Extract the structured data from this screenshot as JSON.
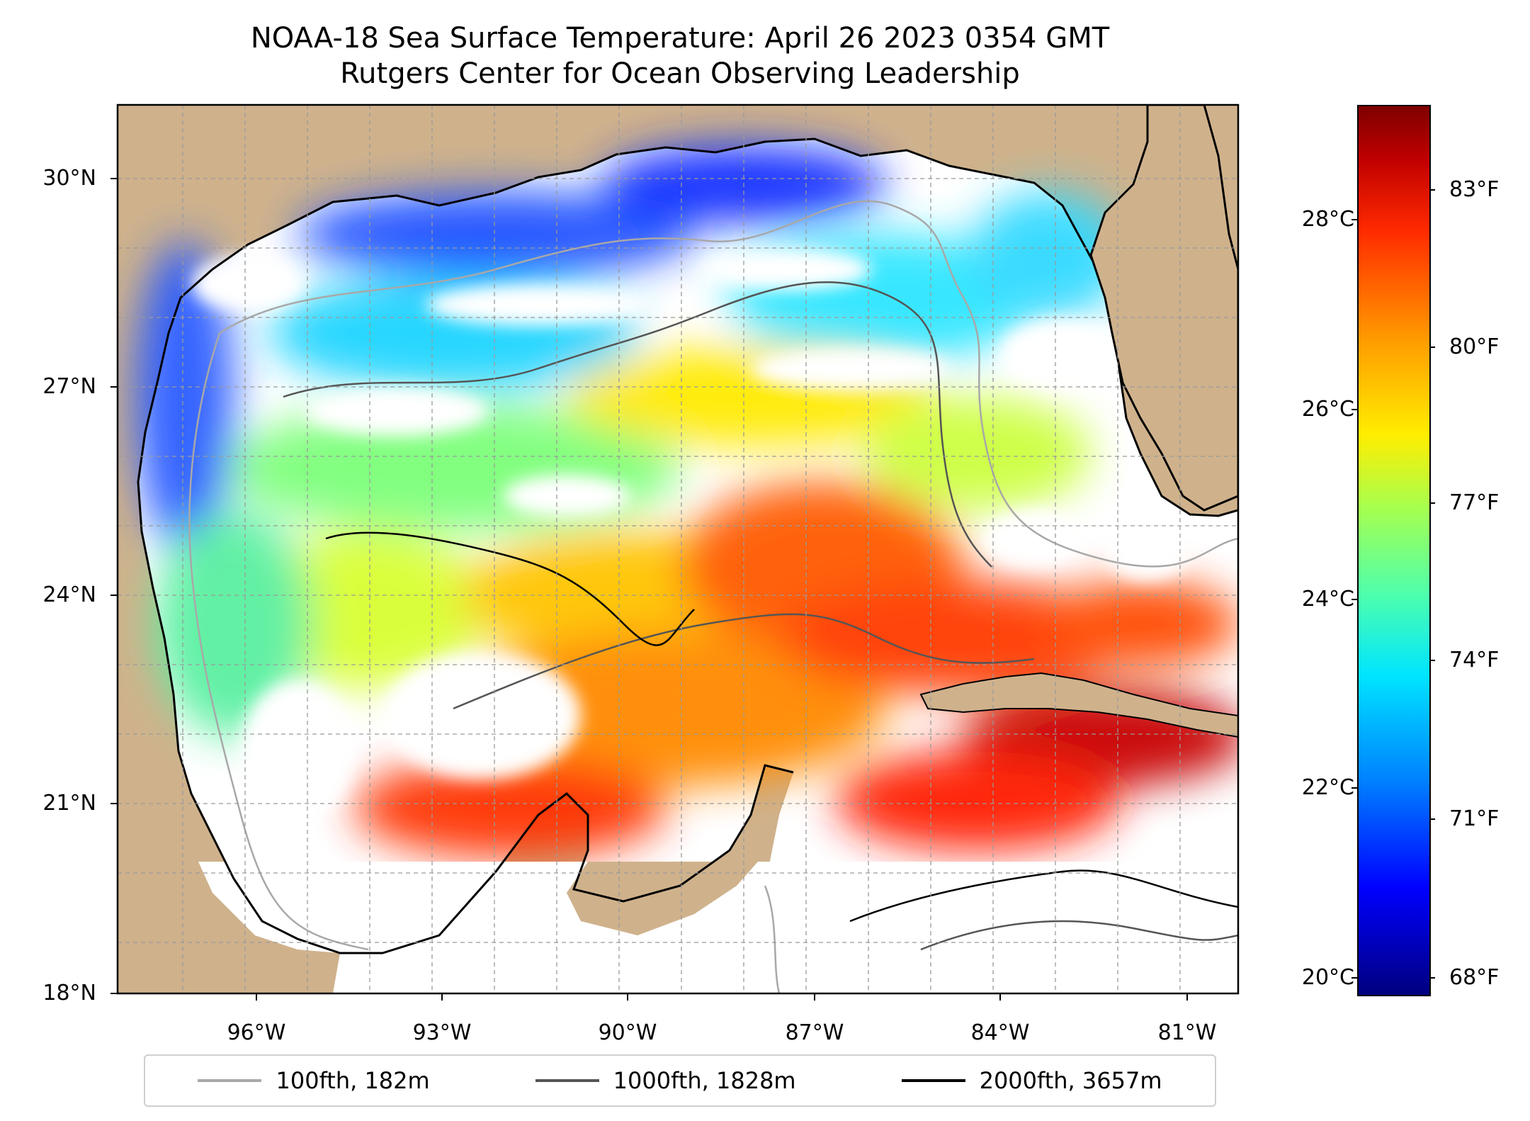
{
  "title": "NOAA-18 Sea Surface Temperature: April 26 2023 0354 GMT",
  "subtitle": "Rutgers Center for Ocean Observing Leadership",
  "map": {
    "lat_ticks": [
      "30°N",
      "27°N",
      "24°N",
      "21°N",
      "18°N"
    ],
    "lon_ticks": [
      "96°W",
      "93°W",
      "90°W",
      "87°W",
      "84°W",
      "81°W"
    ],
    "lat_range": [
      18,
      31
    ],
    "lon_range": [
      -98.3,
      -79.8
    ],
    "land_color": "#cfb28c",
    "gridlines": true
  },
  "colorbar": {
    "celsius_ticks": [
      "28°C",
      "26°C",
      "24°C",
      "22°C",
      "20°C"
    ],
    "fahrenheit_ticks": [
      "83°F",
      "80°F",
      "77°F",
      "74°F",
      "71°F",
      "68°F"
    ],
    "colormap": "jet",
    "range_c": [
      19.9,
      29.3
    ]
  },
  "legend": [
    {
      "label": "100fth, 182m",
      "color": "#a8a8a8"
    },
    {
      "label": "1000fth, 1828m",
      "color": "#555555"
    },
    {
      "label": "2000fth, 3657m",
      "color": "#000000"
    }
  ]
}
